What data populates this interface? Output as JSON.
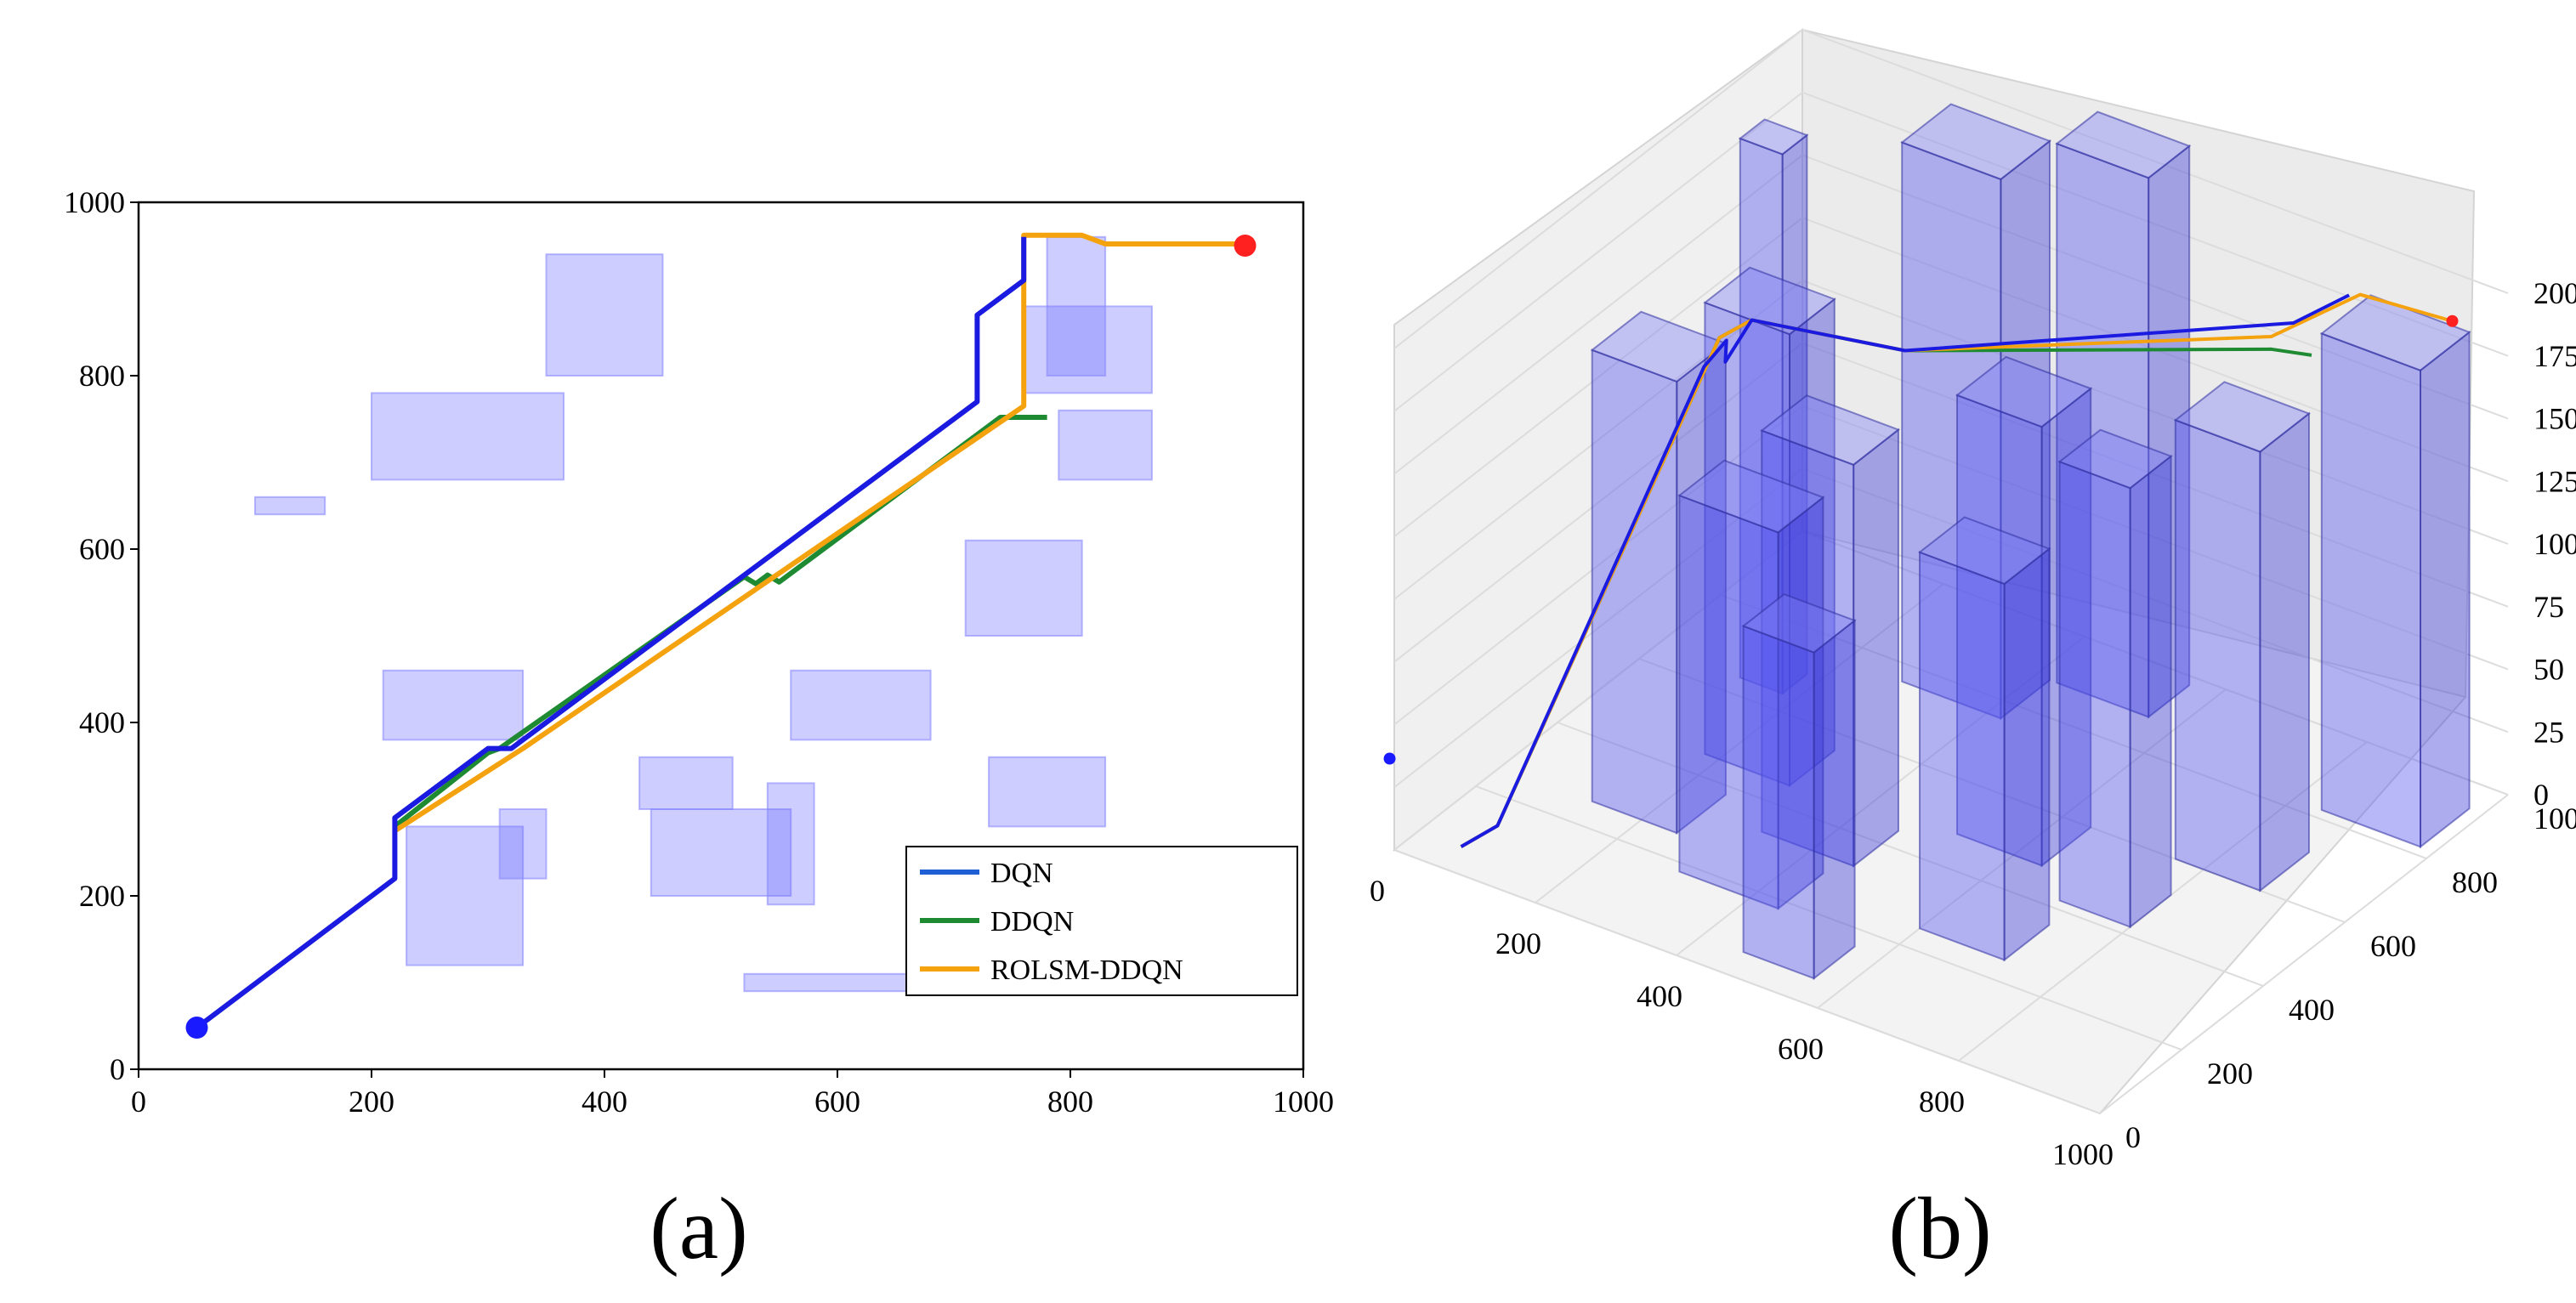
{
  "chart_data": [
    {
      "id": "a",
      "type": "line",
      "panel_label": "(a)",
      "xlim": [
        0,
        1000
      ],
      "ylim": [
        0,
        1000
      ],
      "xticks": [
        0,
        200,
        400,
        600,
        800,
        1000
      ],
      "yticks": [
        0,
        200,
        400,
        600,
        800,
        1000
      ],
      "legend_position": "lower-right",
      "start": [
        50,
        48
      ],
      "goal": [
        950,
        950
      ],
      "obstacles": [
        [
          100,
          640,
          160,
          660
        ],
        [
          200,
          680,
          365,
          780
        ],
        [
          350,
          800,
          450,
          940
        ],
        [
          210,
          380,
          330,
          460
        ],
        [
          230,
          120,
          330,
          280
        ],
        [
          310,
          220,
          350,
          300
        ],
        [
          430,
          300,
          510,
          360
        ],
        [
          440,
          200,
          560,
          300
        ],
        [
          540,
          190,
          580,
          330
        ],
        [
          560,
          380,
          680,
          460
        ],
        [
          710,
          500,
          810,
          610
        ],
        [
          730,
          280,
          830,
          360
        ],
        [
          760,
          780,
          870,
          880
        ],
        [
          790,
          680,
          870,
          760
        ],
        [
          780,
          800,
          830,
          960
        ],
        [
          520,
          90,
          680,
          110
        ]
      ],
      "series": [
        {
          "name": "DQN",
          "color": "#1f5fd6",
          "points": [
            [
              50,
              48
            ],
            [
              220,
              220
            ],
            [
              220,
              290
            ],
            [
              300,
              370
            ],
            [
              320,
              370
            ],
            [
              720,
              770
            ],
            [
              720,
              870
            ],
            [
              760,
              910
            ],
            [
              760,
              960
            ]
          ]
        },
        {
          "name": "DDQN",
          "color": "#1e8a32",
          "points": [
            [
              220,
              280
            ],
            [
              300,
              365
            ],
            [
              310,
              370
            ],
            [
              520,
              568
            ],
            [
              530,
              560
            ],
            [
              540,
              570
            ],
            [
              550,
              562
            ],
            [
              740,
              752
            ],
            [
              780,
              752
            ]
          ]
        },
        {
          "name": "ROLSM-DDQN",
          "color": "#f5a20f",
          "points": [
            [
              220,
              275
            ],
            [
              330,
              370
            ],
            [
              760,
              765
            ],
            [
              760,
              962
            ],
            [
              810,
              962
            ],
            [
              830,
              952
            ],
            [
              950,
              952
            ]
          ]
        }
      ]
    },
    {
      "id": "b",
      "type": "3d-line",
      "panel_label": "(b)",
      "xlim": [
        0,
        1000
      ],
      "ylim": [
        0,
        1000
      ],
      "zlim": [
        0,
        200
      ],
      "xticks": [
        0,
        200,
        400,
        600,
        800,
        1000
      ],
      "yticks": [
        0,
        200,
        400,
        600,
        800,
        1000
      ],
      "zticks": [
        0,
        25,
        50,
        75,
        100,
        125,
        150,
        175,
        200
      ],
      "start": [
        50,
        48,
        0
      ],
      "goal": [
        950,
        950,
        190
      ],
      "series": [
        "DQN",
        "DDQN",
        "ROLSM-DDQN"
      ],
      "buildings": 13
    }
  ]
}
